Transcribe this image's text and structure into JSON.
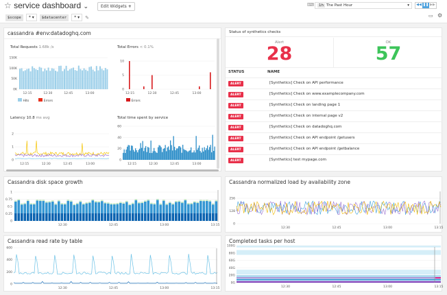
{
  "header": {
    "title": "service dashboard",
    "edit_widgets": "Edit Widgets",
    "vars": [
      {
        "name": "$scope",
        "value": "*"
      },
      {
        "name": "$datacenter",
        "value": "*"
      }
    ],
    "time_badge": "1h",
    "time_label": "The Past Hour"
  },
  "widgets": {
    "cassandra_group": {
      "title": "cassandra #env:datadoghq.com",
      "requests": {
        "title": "Total Requests",
        "value": "1.68k /s",
        "yticks": [
          "150K",
          "100K",
          "50K",
          "0K"
        ],
        "xticks": [
          "12:15",
          "12:30",
          "12:45",
          "13:00"
        ],
        "legend": [
          {
            "label": "Hits",
            "color": "#9ccfe9"
          },
          {
            "label": "Errors",
            "color": "#e8301c"
          }
        ]
      },
      "errors": {
        "title": "Total Errors",
        "value": "< 0.1%",
        "yticks": [
          "10",
          "5",
          "0"
        ],
        "xticks": [
          "12:15",
          "12:30",
          "12:45",
          "13:00"
        ],
        "legend": [
          {
            "label": "Errors",
            "color": "#d7191c"
          }
        ],
        "bars": [
          {
            "t": "12:15",
            "v": 10
          },
          {
            "t": "12:26",
            "v": 1
          },
          {
            "t": "12:32",
            "v": 5
          },
          {
            "t": "13:00",
            "v": 1
          },
          {
            "t": "13:08",
            "v": 6
          }
        ]
      },
      "latency": {
        "title": "Latency",
        "value": "10.8",
        "unit": "ms avg",
        "yticks": [
          "2",
          "1",
          "0"
        ],
        "xticks": [
          "12:15",
          "12:30",
          "12:45",
          "13:00"
        ]
      },
      "time_spent": {
        "title": "Total time spent by service",
        "yticks": [
          "60",
          "40",
          "20",
          "0"
        ],
        "xticks": [
          "12:15",
          "12:30",
          "12:45",
          "13:00"
        ]
      }
    },
    "synthetics": {
      "title": "Status of synthetics checks",
      "alert_label": "Alert",
      "alert_count": "28",
      "ok_label": "OK",
      "ok_count": "57",
      "col_status": "STATUS",
      "col_name": "NAME",
      "alert_color": "#e8304a",
      "ok_color": "#3dc45a",
      "rows": [
        {
          "status": "ALERT",
          "name": "[Synthetics] Check on API performance"
        },
        {
          "status": "ALERT",
          "name": "[Synthetics] Check on www.examplecompany.com"
        },
        {
          "status": "ALERT",
          "name": "[Synthetics] Check on landing page 1"
        },
        {
          "status": "ALERT",
          "name": "[Synthetics] Check on internal page v2"
        },
        {
          "status": "ALERT",
          "name": "[Synthetics] Check on datadoghq.com"
        },
        {
          "status": "ALERT",
          "name": "[Synthetics] Check on API endpoint /getusers"
        },
        {
          "status": "ALERT",
          "name": "[Synthetics] Check on API endpoint /getbalance"
        },
        {
          "status": "ALERT",
          "name": "[Synthetics] test mypage.com"
        }
      ]
    },
    "disk": {
      "title": "Cassandra disk space growth",
      "yticks": [
        "1",
        "0.75",
        "0.5",
        "0.25",
        "0"
      ],
      "xticks": [
        "12:30",
        "12:45",
        "13:00",
        "13:15"
      ]
    },
    "load": {
      "title": "Cassandra normalized load by availability zone",
      "yticks": [
        "256",
        "128",
        "0"
      ],
      "xticks": [
        "12:30",
        "12:45",
        "13:00",
        "13:15"
      ]
    },
    "read": {
      "title": "Cassandra read rate by table",
      "yticks": [
        "600",
        "400",
        "200",
        "0"
      ],
      "xticks": [
        "12:30",
        "12:45",
        "13:00",
        "13:15"
      ]
    },
    "tasks": {
      "title": "Completed tasks per host",
      "yticks": [
        "100G",
        "80G",
        "60G",
        "40G",
        "20G",
        "0G"
      ],
      "xticks": [
        "12:30",
        "12:45",
        "13:00",
        "13:15"
      ]
    }
  }
}
